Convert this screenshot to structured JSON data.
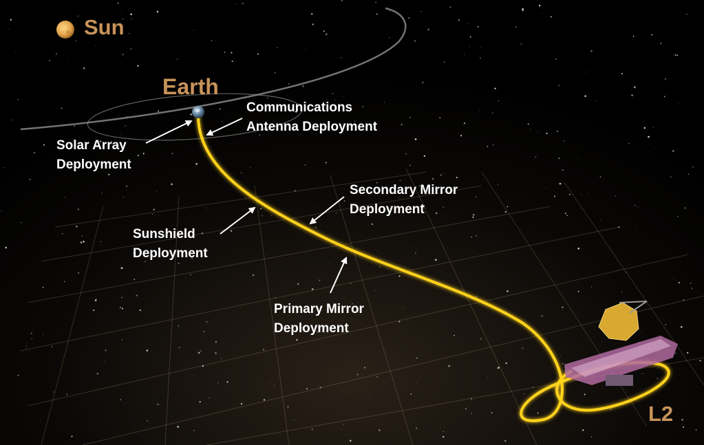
{
  "labels": {
    "sun": "Sun",
    "earth": "Earth",
    "l2": "L2",
    "communications": [
      "Communications",
      "Antenna Deployment"
    ],
    "solar_array": [
      "Solar Array",
      "Deployment"
    ],
    "secondary_mirror": [
      "Secondary Mirror",
      "Deployment"
    ],
    "sunshield": [
      "Sunshield",
      "Deployment"
    ],
    "primary_mirror": [
      "Primary Mirror",
      "Deployment"
    ]
  },
  "colors": {
    "background": "#000000",
    "accent_label": "#c8935a",
    "trajectory": "#ffd21f",
    "label_text": "#ffffff",
    "grid": "#c9b58a",
    "telescope_mirror": "#d9a830",
    "sunshield": "#b06aa0"
  },
  "icons": {
    "sun": "sun-icon",
    "earth": "earth-icon",
    "telescope": "telescope-icon"
  }
}
